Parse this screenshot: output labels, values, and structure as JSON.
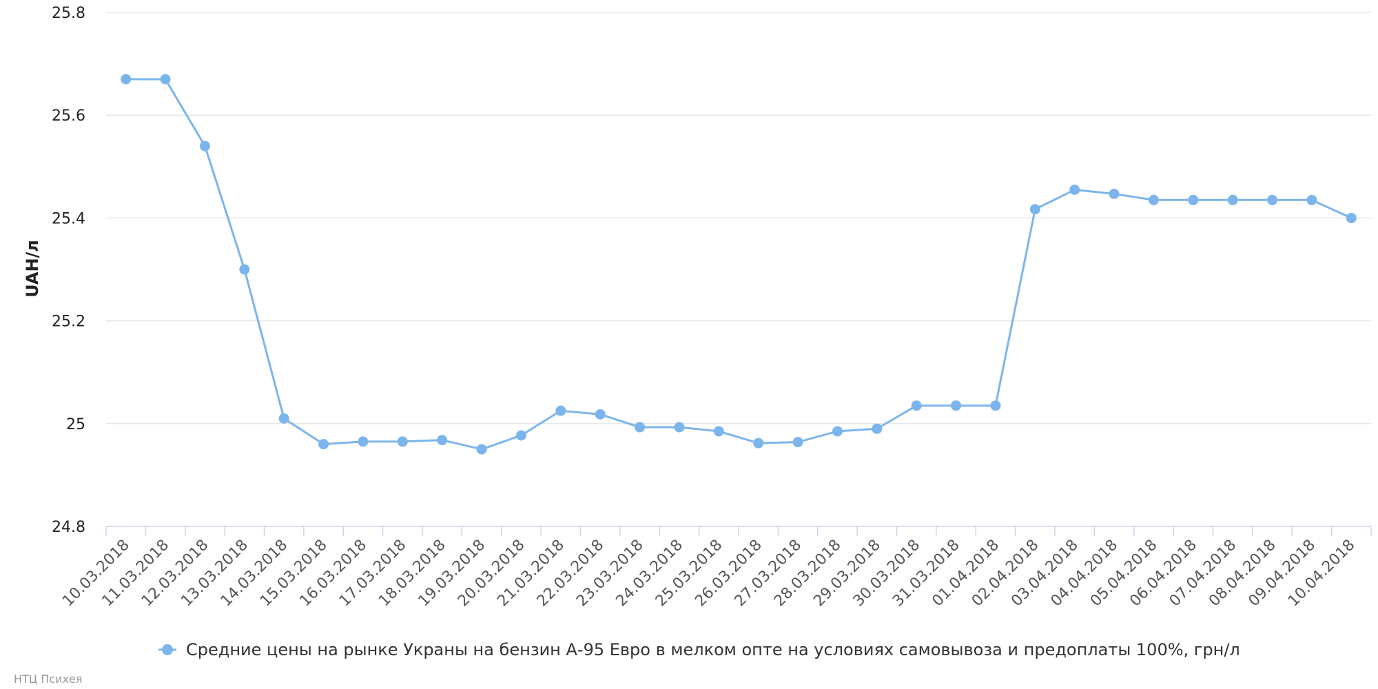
{
  "chart_data": {
    "type": "line",
    "title": "",
    "xlabel": "",
    "ylabel": "UAH/л",
    "ylim": [
      24.8,
      25.8
    ],
    "yticks": [
      "24.8",
      "25",
      "25.2",
      "25.4",
      "25.6",
      "25.8"
    ],
    "grid": true,
    "legend_position": "bottom-center",
    "categories": [
      "10.03.2018",
      "11.03.2018",
      "12.03.2018",
      "13.03.2018",
      "14.03.2018",
      "15.03.2018",
      "16.03.2018",
      "17.03.2018",
      "18.03.2018",
      "19.03.2018",
      "20.03.2018",
      "21.03.2018",
      "22.03.2018",
      "23.03.2018",
      "24.03.2018",
      "25.03.2018",
      "26.03.2018",
      "27.03.2018",
      "28.03.2018",
      "29.03.2018",
      "30.03.2018",
      "31.03.2018",
      "01.04.2018",
      "02.04.2018",
      "03.04.2018",
      "04.04.2018",
      "05.04.2018",
      "06.04.2018",
      "07.04.2018",
      "08.04.2018",
      "09.04.2018",
      "10.04.2018"
    ],
    "series": [
      {
        "name": "Средние цены на рынке Украны на бензин А-95 Евро в мелком опте на условиях самовывоза и предоплаты 100%, грн/л",
        "color": "#7cb5ec",
        "values": [
          25.67,
          25.67,
          25.54,
          25.3,
          25.01,
          24.96,
          24.965,
          24.965,
          24.968,
          24.95,
          24.977,
          25.025,
          25.018,
          24.993,
          24.993,
          24.985,
          24.962,
          24.964,
          24.985,
          24.99,
          25.035,
          25.035,
          25.035,
          25.417,
          25.455,
          25.447,
          25.435,
          25.435,
          25.435,
          25.435,
          25.435,
          25.4
        ]
      }
    ]
  },
  "credits": "НТЦ Психея"
}
